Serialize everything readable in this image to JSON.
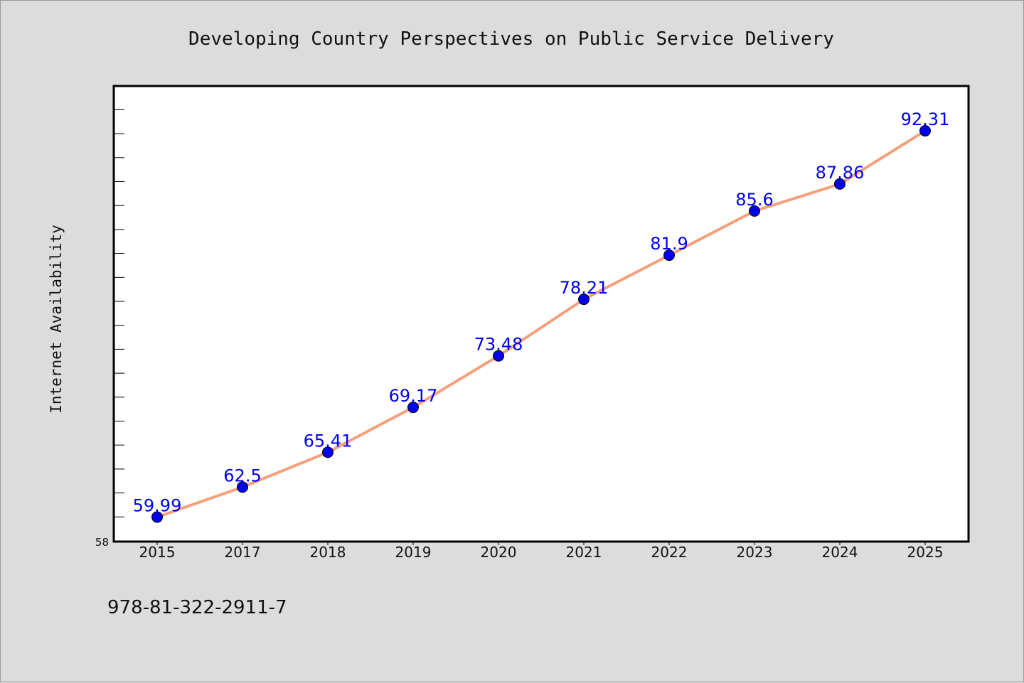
{
  "chart_data": {
    "type": "line",
    "title": "Developing Country Perspectives on Public Service Delivery",
    "ylabel": "Internet Availability",
    "xlabel": "",
    "categories": [
      "2015",
      "2017",
      "2018",
      "2019",
      "2020",
      "2021",
      "2022",
      "2023",
      "2024",
      "2025"
    ],
    "values": [
      59.99,
      62.5,
      65.41,
      69.17,
      73.48,
      78.21,
      81.9,
      85.6,
      87.86,
      92.31
    ],
    "value_labels": [
      "59.99",
      "62.5",
      "65.41",
      "69.17",
      "73.48",
      "78.21",
      "81.9",
      "85.6",
      "87.86",
      "92.31"
    ],
    "ylim": [
      58,
      96
    ],
    "y_min_label": "58",
    "grid": false,
    "line_color": "#f4a07a",
    "marker_color": "#0000ee",
    "label_color": "#0000ee"
  },
  "footer": {
    "isbn": "978-81-322-2911-7"
  }
}
